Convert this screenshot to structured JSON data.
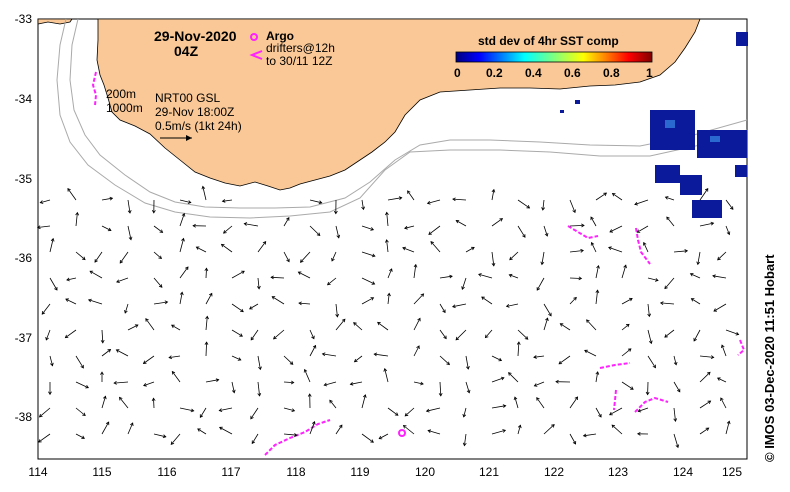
{
  "map": {
    "date": "29-Nov-2020",
    "time": "04Z",
    "contour_labels": [
      "200m",
      "1000m"
    ],
    "model": {
      "line1": "NRT00 GSL",
      "line2": "29-Nov 18:00Z",
      "scale": "0.5m/s (1kt 24h)"
    },
    "legend": {
      "argo": "Argo",
      "drifters_line1": "drifters@12h",
      "drifters_line2": "to 30/11 12Z"
    },
    "colorbar": {
      "title": "std dev of 4hr SST comp",
      "ticks": [
        "0",
        "0.2",
        "0.4",
        "0.6",
        "0.8",
        "1"
      ]
    },
    "lat_labels": [
      "-33",
      "-34",
      "-35",
      "-36",
      "-37",
      "-38"
    ],
    "lon_labels": [
      "114",
      "115",
      "116",
      "117",
      "118",
      "119",
      "120",
      "121",
      "122",
      "123",
      "124",
      "125"
    ],
    "credit": "© IMOS 03-Dec-2020 11:51 Hobart",
    "colors": {
      "land": "#f9c896",
      "drifter": "#ff22ff",
      "cloud_high": "#0a1a9a",
      "isobath": "#aaaaaa"
    }
  }
}
